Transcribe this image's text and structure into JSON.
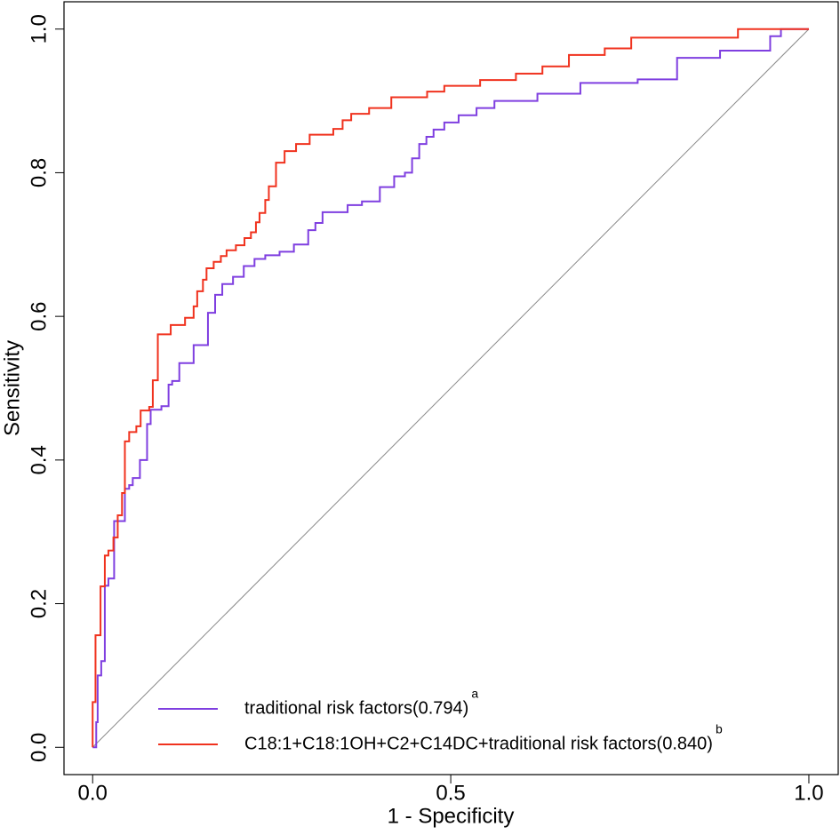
{
  "chart_data": {
    "type": "line",
    "xlabel": "1 - Specificity",
    "ylabel": "Sensitivity",
    "xlim": [
      -0.04,
      1.041
    ],
    "ylim": [
      -0.038,
      1.038
    ],
    "xticks": [
      {
        "value": 0,
        "label": "0.0"
      },
      {
        "value": 0.5,
        "label": "0.5"
      },
      {
        "value": 1,
        "label": "1.0"
      }
    ],
    "yticks": [
      {
        "value": 0,
        "label": "0.0"
      },
      {
        "value": 0.2,
        "label": "0.2"
      },
      {
        "value": 0.4,
        "label": "0.4"
      },
      {
        "value": 0.6,
        "label": "0.6"
      },
      {
        "value": 0.8,
        "label": "0.8"
      },
      {
        "value": 1,
        "label": "1.0"
      }
    ],
    "legend": "bottom",
    "series": [
      {
        "name": "traditional risk factors(0.794)",
        "superscript": "a",
        "color": "#7f3fe0",
        "x": [
          0,
          0.005,
          0.007,
          0.012,
          0.017,
          0.022,
          0.03,
          0.045,
          0.051,
          0.056,
          0.066,
          0.076,
          0.081,
          0.096,
          0.106,
          0.111,
          0.121,
          0.141,
          0.161,
          0.171,
          0.181,
          0.196,
          0.211,
          0.226,
          0.241,
          0.261,
          0.281,
          0.301,
          0.311,
          0.321,
          0.356,
          0.376,
          0.401,
          0.421,
          0.436,
          0.446,
          0.456,
          0.466,
          0.476,
          0.491,
          0.511,
          0.536,
          0.561,
          0.621,
          0.681,
          0.761,
          0.816,
          0.876,
          0.946,
          0.961,
          1
        ],
        "values": [
          0,
          0.035,
          0.1,
          0.12,
          0.225,
          0.235,
          0.315,
          0.36,
          0.365,
          0.375,
          0.4,
          0.45,
          0.47,
          0.475,
          0.505,
          0.51,
          0.535,
          0.56,
          0.605,
          0.63,
          0.645,
          0.655,
          0.67,
          0.68,
          0.685,
          0.69,
          0.7,
          0.72,
          0.73,
          0.745,
          0.755,
          0.76,
          0.78,
          0.795,
          0.8,
          0.82,
          0.84,
          0.85,
          0.86,
          0.87,
          0.88,
          0.89,
          0.9,
          0.91,
          0.925,
          0.93,
          0.96,
          0.97,
          0.99,
          1,
          1
        ]
      },
      {
        "name": "C18:1+C18:1OH+C2+C14DC+traditional risk factors(0.840)",
        "superscript": "b",
        "color": "#f0321e",
        "x": [
          0,
          0,
          0.004,
          0.011,
          0.017,
          0.022,
          0.029,
          0.035,
          0.041,
          0.045,
          0.051,
          0.061,
          0.067,
          0.079,
          0.084,
          0.091,
          0.109,
          0.129,
          0.141,
          0.146,
          0.154,
          0.159,
          0.169,
          0.179,
          0.187,
          0.2,
          0.212,
          0.221,
          0.228,
          0.233,
          0.241,
          0.246,
          0.256,
          0.268,
          0.284,
          0.303,
          0.336,
          0.349,
          0.361,
          0.386,
          0.417,
          0.467,
          0.491,
          0.541,
          0.591,
          0.628,
          0.665,
          0.715,
          0.752,
          0.901,
          1
        ],
        "values": [
          0,
          0.063,
          0.156,
          0.224,
          0.267,
          0.274,
          0.292,
          0.323,
          0.354,
          0.426,
          0.439,
          0.447,
          0.469,
          0.474,
          0.511,
          0.575,
          0.588,
          0.598,
          0.614,
          0.635,
          0.651,
          0.667,
          0.676,
          0.684,
          0.692,
          0.699,
          0.709,
          0.717,
          0.731,
          0.744,
          0.762,
          0.781,
          0.814,
          0.83,
          0.84,
          0.853,
          0.861,
          0.873,
          0.882,
          0.89,
          0.905,
          0.913,
          0.921,
          0.929,
          0.938,
          0.948,
          0.964,
          0.973,
          0.988,
          1,
          1
        ]
      }
    ]
  }
}
